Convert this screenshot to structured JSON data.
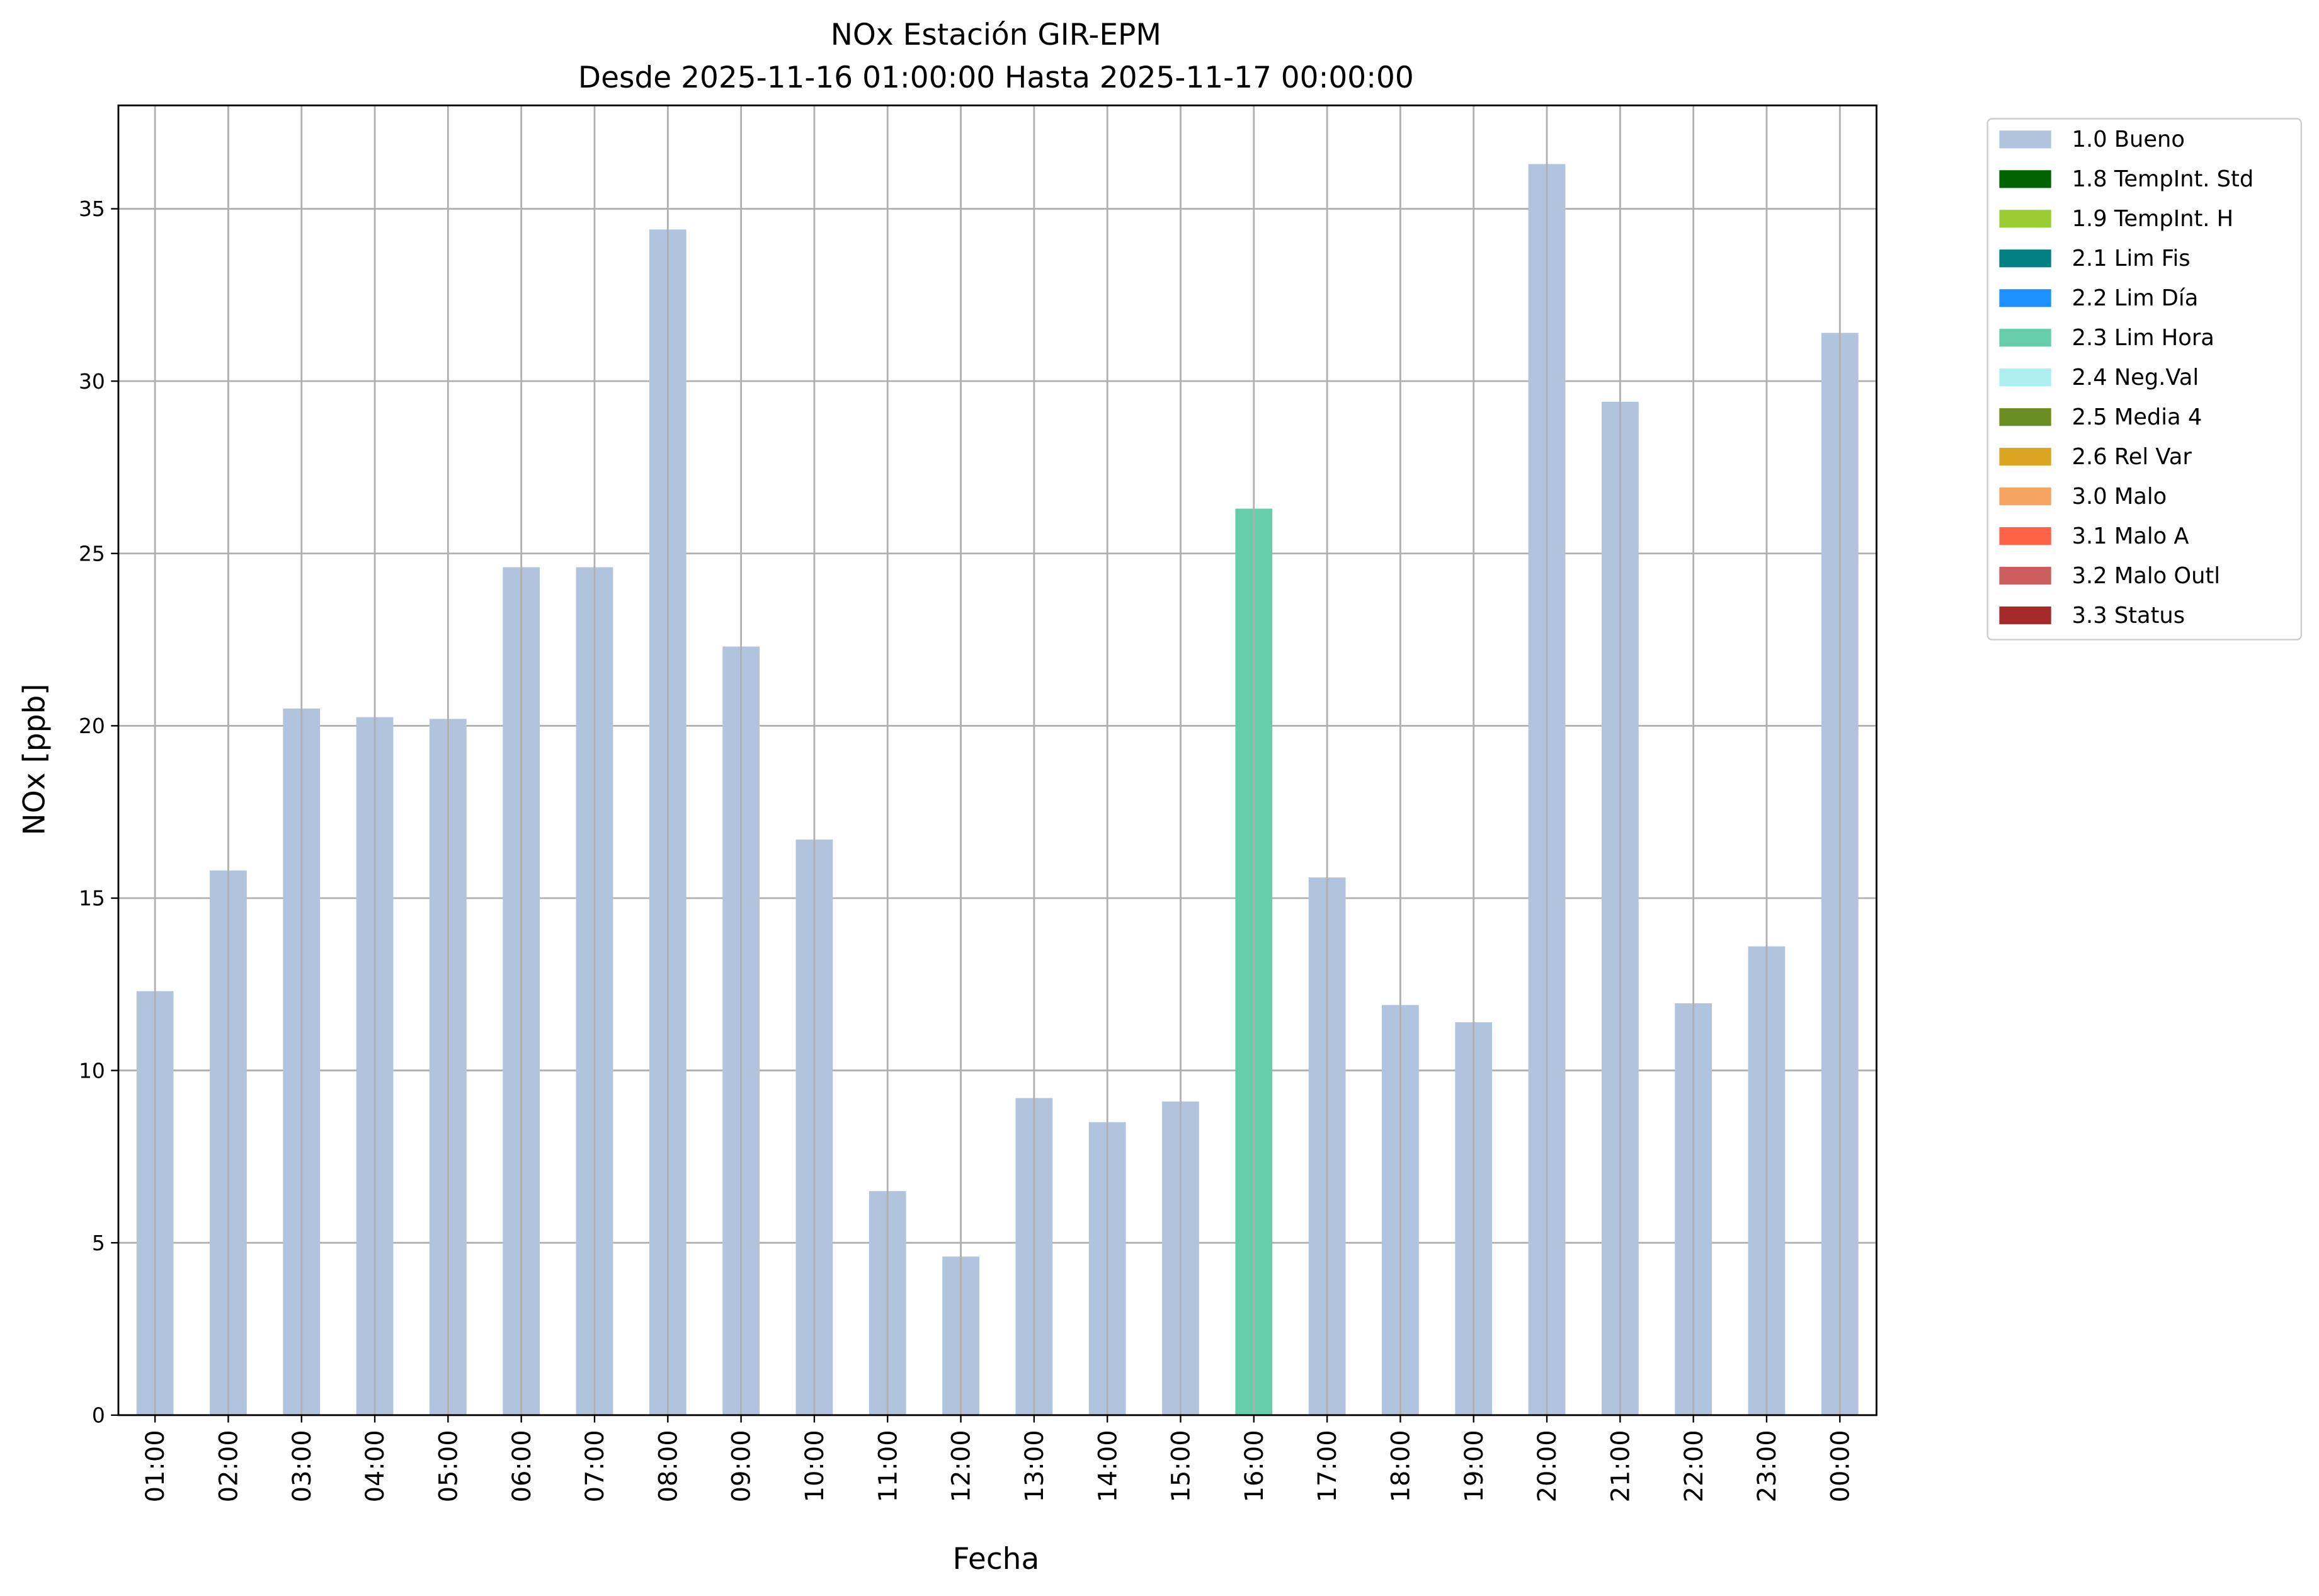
{
  "chart_data": {
    "type": "bar",
    "title": "NOx Estación GIR-EPM",
    "subtitle": "Desde 2025-11-16 01:00:00 Hasta 2025-11-17 00:00:00",
    "xlabel": "Fecha",
    "ylabel": "NOx [ppb]",
    "ylim": [
      0,
      38
    ],
    "yticks": [
      0,
      5,
      10,
      15,
      20,
      25,
      30,
      35
    ],
    "grid": true,
    "legend_placement": "outside-top-right",
    "categories": [
      "01:00",
      "02:00",
      "03:00",
      "04:00",
      "05:00",
      "06:00",
      "07:00",
      "08:00",
      "09:00",
      "10:00",
      "11:00",
      "12:00",
      "13:00",
      "14:00",
      "15:00",
      "16:00",
      "17:00",
      "18:00",
      "19:00",
      "20:00",
      "21:00",
      "22:00",
      "23:00",
      "00:00"
    ],
    "values": [
      12.3,
      15.8,
      20.5,
      20.25,
      20.2,
      24.6,
      24.6,
      34.4,
      22.3,
      16.7,
      6.5,
      4.6,
      9.2,
      8.5,
      9.1,
      26.3,
      15.6,
      11.9,
      11.4,
      36.3,
      29.4,
      11.95,
      13.6,
      31.4
    ],
    "flags": [
      "1.0 Bueno",
      "1.0 Bueno",
      "1.0 Bueno",
      "1.0 Bueno",
      "1.0 Bueno",
      "1.0 Bueno",
      "1.0 Bueno",
      "1.0 Bueno",
      "1.0 Bueno",
      "1.0 Bueno",
      "1.0 Bueno",
      "1.0 Bueno",
      "1.0 Bueno",
      "1.0 Bueno",
      "1.0 Bueno",
      "2.3 Lim Hora",
      "1.0 Bueno",
      "1.0 Bueno",
      "1.0 Bueno",
      "1.0 Bueno",
      "1.0 Bueno",
      "1.0 Bueno",
      "1.0 Bueno",
      "1.0 Bueno"
    ],
    "legend": [
      {
        "label": "1.0 Bueno",
        "color": "#b0c4de"
      },
      {
        "label": "1.8 TempInt. Std",
        "color": "#006400"
      },
      {
        "label": "1.9 TempInt. H",
        "color": "#9acd32"
      },
      {
        "label": "2.1 Lim Fis",
        "color": "#008080"
      },
      {
        "label": "2.2 Lim Día",
        "color": "#1e90ff"
      },
      {
        "label": "2.3 Lim Hora",
        "color": "#66cdaa"
      },
      {
        "label": "2.4 Neg.Val",
        "color": "#afeeee"
      },
      {
        "label": "2.5 Media 4",
        "color": "#6b8e23"
      },
      {
        "label": "2.6 Rel Var",
        "color": "#daa520"
      },
      {
        "label": "3.0 Malo",
        "color": "#f4a460"
      },
      {
        "label": "3.1 Malo A",
        "color": "#ff6347"
      },
      {
        "label": "3.2 Malo Outl",
        "color": "#cd5c5c"
      },
      {
        "label": "3.3 Status",
        "color": "#a52a2a"
      }
    ]
  }
}
